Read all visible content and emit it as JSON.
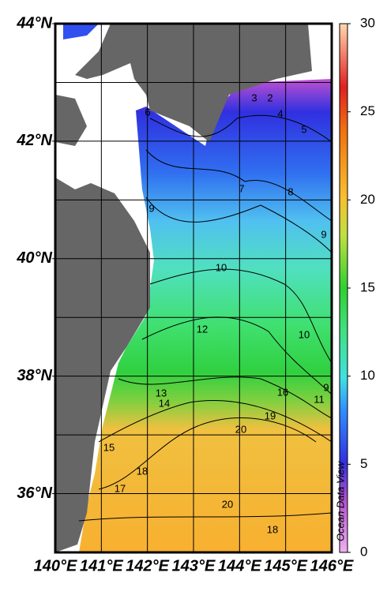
{
  "map": {
    "lat_ticks": [
      {
        "value": 44,
        "label": "44°N"
      },
      {
        "value": 42,
        "label": "42°N"
      },
      {
        "value": 40,
        "label": "40°N"
      },
      {
        "value": 38,
        "label": "38°N"
      },
      {
        "value": 36,
        "label": "36°N"
      }
    ],
    "lon_ticks": [
      {
        "value": 140,
        "label": "140°E"
      },
      {
        "value": 141,
        "label": "141°E"
      },
      {
        "value": 142,
        "label": "142°E"
      },
      {
        "value": 143,
        "label": "143°E"
      },
      {
        "value": 144,
        "label": "144°E"
      },
      {
        "value": 145,
        "label": "145°E"
      },
      {
        "value": 146,
        "label": "146°E"
      }
    ],
    "lat_range": [
      35,
      44
    ],
    "lon_range": [
      140,
      146
    ],
    "colorbar": {
      "range": [
        0,
        30
      ],
      "ticks": [
        0,
        5,
        10,
        15,
        20,
        25,
        30
      ]
    },
    "contour_labels": [
      2,
      3,
      4,
      5,
      6,
      7,
      8,
      9,
      9,
      10,
      10,
      12,
      13,
      14,
      16,
      9,
      11,
      15,
      18,
      17,
      19,
      20,
      20,
      18
    ],
    "credit": "Ocean Data View"
  }
}
